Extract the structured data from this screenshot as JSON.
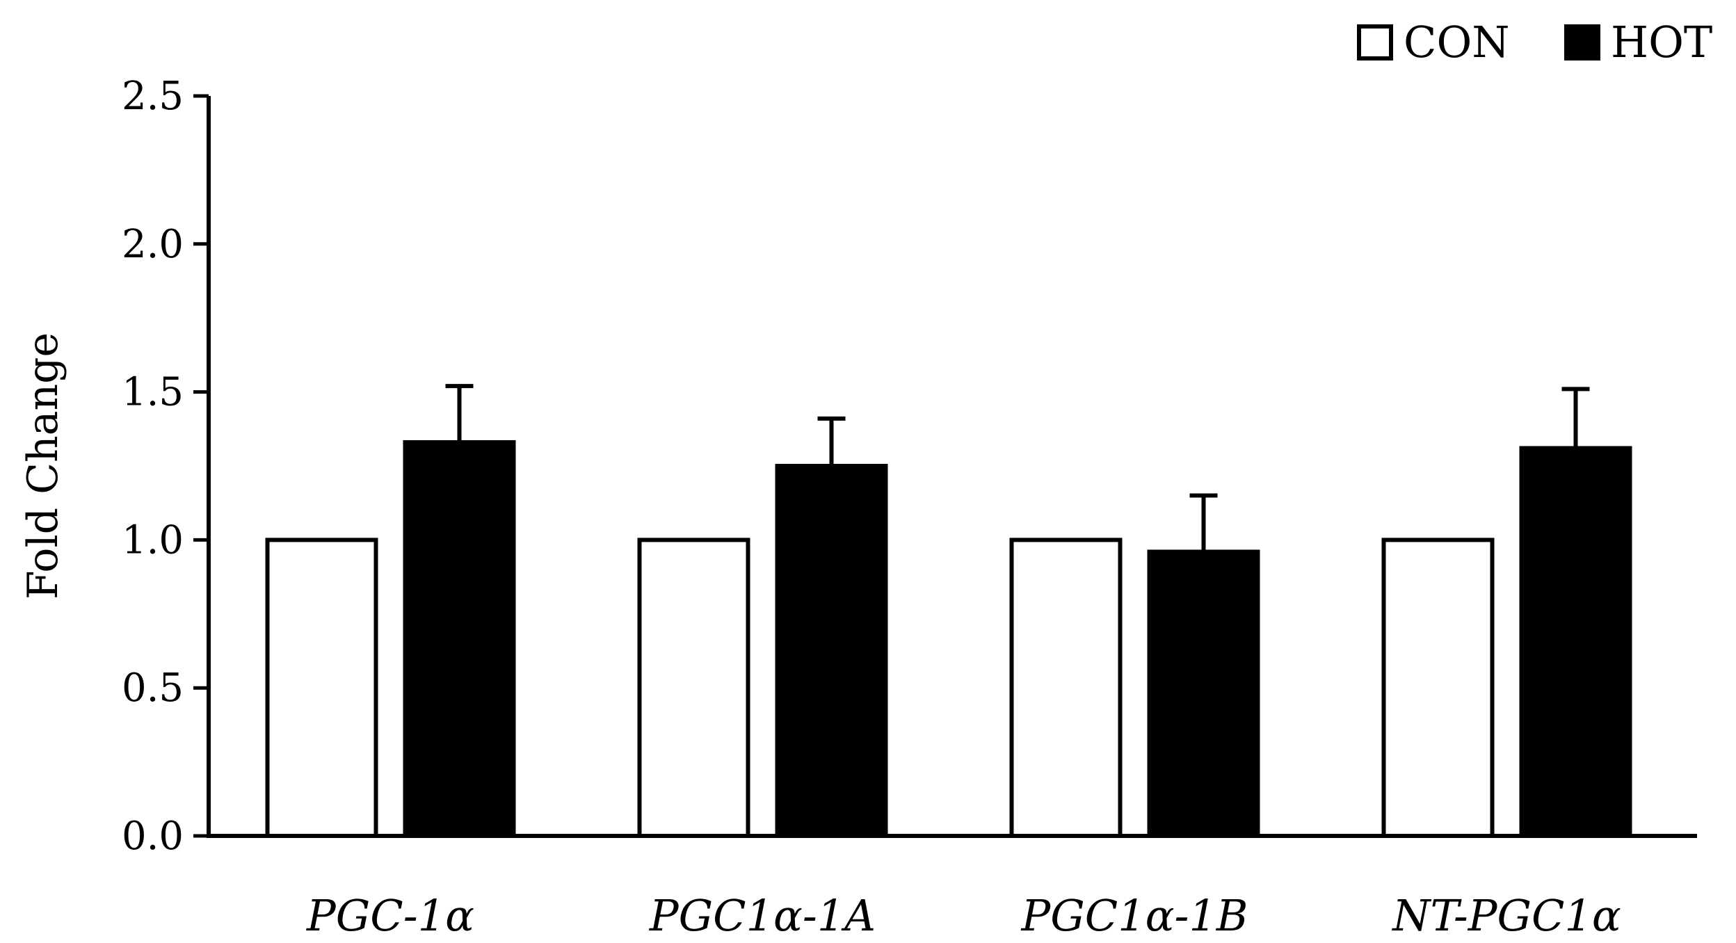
{
  "chart_data": {
    "type": "bar",
    "title": "",
    "xlabel": "",
    "ylabel": "Fold Change",
    "ylim": [
      0,
      2.5
    ],
    "yticks": [
      "0.0",
      "0.5",
      "1.0",
      "1.5",
      "2.0",
      "2.5"
    ],
    "categories": [
      "PGC-1α",
      "PGC1α-1A",
      "PGC1α-1B",
      "NT-PGC1α"
    ],
    "series": [
      {
        "name": "CON",
        "color": "#ffffff",
        "values": [
          1.0,
          1.0,
          1.0,
          1.0
        ],
        "errors": [
          0,
          0,
          0,
          0
        ]
      },
      {
        "name": "HOT",
        "color": "#000000",
        "values": [
          1.33,
          1.25,
          0.96,
          1.31
        ],
        "errors": [
          0.19,
          0.16,
          0.19,
          0.2
        ]
      }
    ],
    "legend_position": "top-right",
    "grid": false
  }
}
